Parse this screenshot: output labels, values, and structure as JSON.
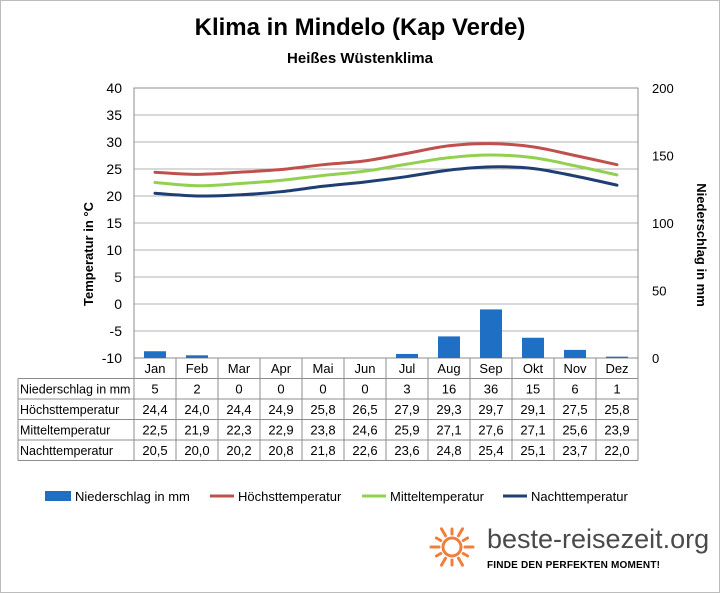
{
  "title": "Klima in Mindelo (Kap Verde)",
  "subtitle": "Heißes Wüstenklima",
  "brand": {
    "name": "beste-reisezeit.org",
    "slogan": "FINDE DEN PERFEKTEN MOMENT!",
    "logo_icon": "sun-icon",
    "logo_color": "#f07f3c"
  },
  "chart_data": {
    "type": "bar+line",
    "months": [
      "Jan",
      "Feb",
      "Mar",
      "Apr",
      "Mai",
      "Jun",
      "Jul",
      "Aug",
      "Sep",
      "Okt",
      "Nov",
      "Dez"
    ],
    "left_axis": {
      "label": "Temperatur in °C",
      "min": -10,
      "max": 40,
      "ticks": [
        40,
        35,
        30,
        25,
        20,
        15,
        10,
        5,
        0,
        -5,
        -10
      ]
    },
    "right_axis": {
      "label": "Niederschlag in mm",
      "min": 0,
      "max": 200,
      "ticks": [
        200,
        150,
        100,
        50,
        0
      ]
    },
    "grid": true,
    "legend_position": "bottom",
    "series": [
      {
        "name": "Niederschlag in mm",
        "kind": "bar",
        "axis": "right",
        "color": "#1f6fc5",
        "values": [
          5,
          2,
          0,
          0,
          0,
          0,
          3,
          16,
          36,
          15,
          6,
          1
        ],
        "display": [
          "5",
          "2",
          "0",
          "0",
          "0",
          "0",
          "3",
          "16",
          "36",
          "15",
          "6",
          "1"
        ]
      },
      {
        "name": "Höchsttemperatur",
        "kind": "line",
        "axis": "left",
        "color": "#c0504d",
        "values": [
          24.4,
          24.0,
          24.4,
          24.9,
          25.8,
          26.5,
          27.9,
          29.3,
          29.7,
          29.1,
          27.5,
          25.8
        ],
        "display": [
          "24,4",
          "24,0",
          "24,4",
          "24,9",
          "25,8",
          "26,5",
          "27,9",
          "29,3",
          "29,7",
          "29,1",
          "27,5",
          "25,8"
        ]
      },
      {
        "name": "Mitteltemperatur",
        "kind": "line",
        "axis": "left",
        "color": "#92d050",
        "values": [
          22.5,
          21.9,
          22.3,
          22.9,
          23.8,
          24.6,
          25.9,
          27.1,
          27.6,
          27.1,
          25.6,
          23.9
        ],
        "display": [
          "22,5",
          "21,9",
          "22,3",
          "22,9",
          "23,8",
          "24,6",
          "25,9",
          "27,1",
          "27,6",
          "27,1",
          "25,6",
          "23,9"
        ]
      },
      {
        "name": "Nachttemperatur",
        "kind": "line",
        "axis": "left",
        "color": "#1f3f73",
        "values": [
          20.5,
          20.0,
          20.2,
          20.8,
          21.8,
          22.6,
          23.6,
          24.8,
          25.4,
          25.1,
          23.7,
          22.0
        ],
        "display": [
          "20,5",
          "20,0",
          "20,2",
          "20,8",
          "21,8",
          "22,6",
          "23,6",
          "24,8",
          "25,4",
          "25,1",
          "23,7",
          "22,0"
        ]
      }
    ]
  }
}
